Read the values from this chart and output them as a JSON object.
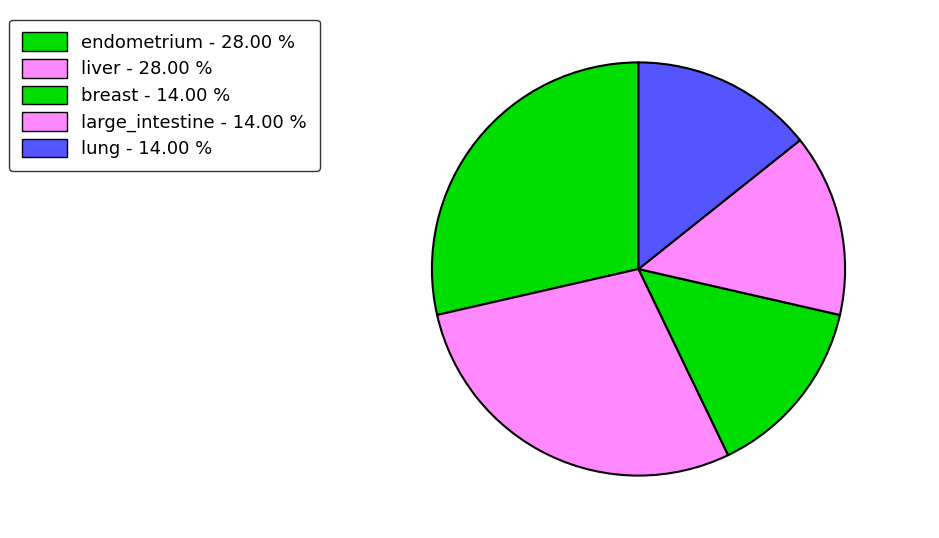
{
  "labels": [
    "endometrium",
    "liver",
    "breast",
    "large_intestine",
    "lung"
  ],
  "values": [
    28,
    28,
    14,
    14,
    14
  ],
  "colors": [
    "#00dd00",
    "#ff88ff",
    "#00dd00",
    "#ff88ff",
    "#5555ff"
  ],
  "legend_labels": [
    "endometrium - 28.00 %",
    "liver - 28.00 %",
    "breast - 14.00 %",
    "large_intestine - 14.00 %",
    "lung - 14.00 %"
  ],
  "startangle": 90,
  "background_color": "#ffffff",
  "figsize": [
    9.39,
    5.38
  ],
  "dpi": 100
}
